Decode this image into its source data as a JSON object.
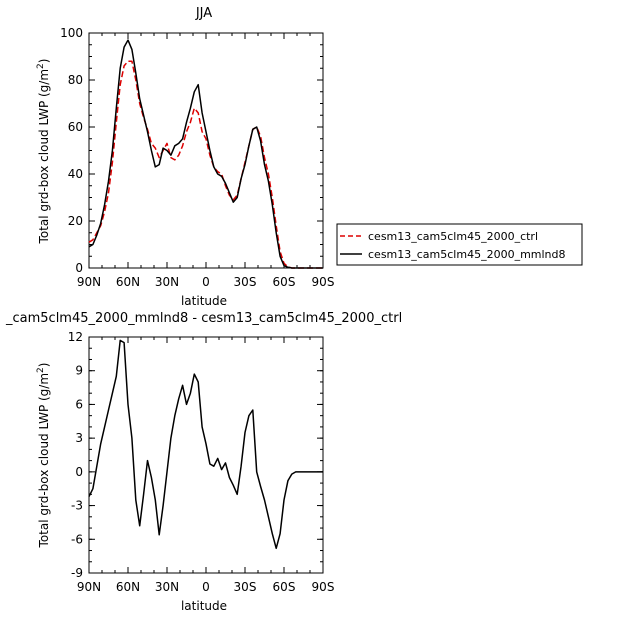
{
  "chart_data": [
    {
      "type": "line",
      "title": "JJA",
      "xlabel": "latitude",
      "ylabel": "Total grd-box cloud LWP (g/m²)",
      "ylabel_prefix": "Total grd-box cloud LWP (g/m",
      "ylabel_sup": "2",
      "ylabel_suffix": ")",
      "xlim": [
        90,
        -90
      ],
      "ylim": [
        0,
        100
      ],
      "xticks": [
        90,
        60,
        30,
        0,
        -30,
        -60,
        -90
      ],
      "xtick_labels": [
        "90N",
        "60N",
        "30N",
        "0",
        "30S",
        "60S",
        "90S"
      ],
      "yticks": [
        0,
        20,
        40,
        60,
        80,
        100
      ],
      "ytick_labels": [
        "0",
        "20",
        "40",
        "60",
        "80",
        "100"
      ],
      "legend": {
        "placement": "outside-right",
        "entries": [
          "cesm13_cam5clm45_2000_ctrl",
          "cesm13_cam5clm45_2000_mmlnd8"
        ]
      },
      "series": [
        {
          "name": "cesm13_cam5clm45_2000_ctrl",
          "color": "#dd0000",
          "dash": "dashed",
          "x": [
            90,
            87,
            84,
            81,
            78,
            75,
            72,
            69,
            66,
            63,
            60,
            57,
            54,
            51,
            48,
            45,
            42,
            39,
            36,
            33,
            30,
            27,
            24,
            21,
            18,
            15,
            12,
            9,
            6,
            3,
            0,
            -3,
            -6,
            -9,
            -12,
            -15,
            -18,
            -21,
            -24,
            -27,
            -30,
            -33,
            -36,
            -39,
            -42,
            -45,
            -48,
            -51,
            -54,
            -57,
            -60,
            -63,
            -66,
            -69,
            -72,
            -75,
            -78,
            -81,
            -84,
            -87,
            -90
          ],
          "y": [
            11,
            12,
            15,
            18,
            24,
            32,
            45,
            62,
            78,
            86,
            88,
            88,
            80,
            70,
            64,
            59,
            53,
            51,
            47,
            50,
            53,
            47,
            46,
            48,
            52,
            58,
            62,
            68,
            66,
            58,
            55,
            48,
            43,
            41,
            40,
            35,
            31,
            29,
            31,
            38,
            45,
            52,
            59,
            60,
            56,
            47,
            40,
            30,
            18,
            7,
            2,
            0.5,
            0,
            0,
            0,
            0,
            0,
            0,
            0,
            0,
            0
          ]
        },
        {
          "name": "cesm13_cam5clm45_2000_mmlnd8",
          "color": "#000000",
          "dash": "solid",
          "x": [
            90,
            87,
            84,
            81,
            78,
            75,
            72,
            69,
            66,
            63,
            60,
            57,
            54,
            51,
            48,
            45,
            42,
            39,
            36,
            33,
            30,
            27,
            24,
            21,
            18,
            15,
            12,
            9,
            6,
            3,
            0,
            -3,
            -6,
            -9,
            -12,
            -15,
            -18,
            -21,
            -24,
            -27,
            -30,
            -33,
            -36,
            -39,
            -42,
            -45,
            -48,
            -51,
            -54,
            -57,
            -60,
            -63,
            -66,
            -69,
            -72,
            -75,
            -78,
            -81,
            -84,
            -87,
            -90
          ],
          "y": [
            9,
            10,
            14,
            19,
            27,
            37,
            50,
            68,
            85,
            94,
            97,
            93,
            83,
            72,
            65,
            58,
            50,
            43,
            44,
            51,
            50,
            48,
            52,
            53,
            55,
            62,
            68,
            75,
            78,
            66,
            58,
            50,
            43,
            40,
            39,
            36,
            32,
            28,
            30,
            38,
            44,
            52,
            59,
            60,
            54,
            44,
            37,
            27,
            15,
            5,
            1,
            0.3,
            0,
            0,
            0,
            0,
            0,
            0,
            0,
            0,
            0
          ]
        }
      ]
    },
    {
      "type": "line",
      "title": "_cam5clm45_2000_mmlnd8 - cesm13_cam5clm45_2000_ctrl",
      "xlabel": "latitude",
      "ylabel": "Total grd-box cloud LWP (g/m²)",
      "ylabel_prefix": "Total grd-box cloud LWP (g/m",
      "ylabel_sup": "2",
      "ylabel_suffix": ")",
      "xlim": [
        90,
        -90
      ],
      "ylim": [
        -9,
        12
      ],
      "xticks": [
        90,
        60,
        30,
        0,
        -30,
        -60,
        -90
      ],
      "xtick_labels": [
        "90N",
        "60N",
        "30N",
        "0",
        "30S",
        "60S",
        "90S"
      ],
      "yticks": [
        -9,
        -6,
        -3,
        0,
        3,
        6,
        9,
        12
      ],
      "ytick_labels": [
        "-9",
        "-6",
        "-3",
        "0",
        "3",
        "6",
        "9",
        "12"
      ],
      "series": [
        {
          "color": "#000000",
          "dash": "solid",
          "x": [
            90,
            87,
            84,
            81,
            78,
            75,
            72,
            69,
            66,
            63,
            60,
            57,
            54,
            51,
            48,
            45,
            42,
            39,
            36,
            33,
            30,
            27,
            24,
            21,
            18,
            15,
            12,
            9,
            6,
            3,
            0,
            -3,
            -6,
            -9,
            -12,
            -15,
            -18,
            -21,
            -24,
            -27,
            -30,
            -33,
            -36,
            -39,
            -42,
            -45,
            -48,
            -51,
            -54,
            -57,
            -60,
            -63,
            -66,
            -69,
            -72,
            -75,
            -78,
            -81,
            -84,
            -87,
            -90
          ],
          "y": [
            -2.2,
            -1.5,
            0.5,
            2.5,
            4,
            5.5,
            7,
            8.5,
            11.7,
            11.5,
            6,
            3,
            -2.5,
            -4.8,
            -2,
            1,
            -0.5,
            -2.5,
            -5.6,
            -3,
            0,
            3,
            5,
            6.5,
            7.7,
            6,
            7,
            8.7,
            8,
            4,
            2.5,
            0.7,
            0.5,
            1.2,
            0.2,
            0.8,
            -0.5,
            -1.2,
            -2,
            0.5,
            3.5,
            5,
            5.5,
            0,
            -1.3,
            -2.5,
            -4,
            -5.5,
            -6.8,
            -5.5,
            -2.5,
            -0.8,
            -0.2,
            0,
            0,
            0,
            0,
            0,
            0,
            0,
            0
          ]
        }
      ]
    }
  ]
}
